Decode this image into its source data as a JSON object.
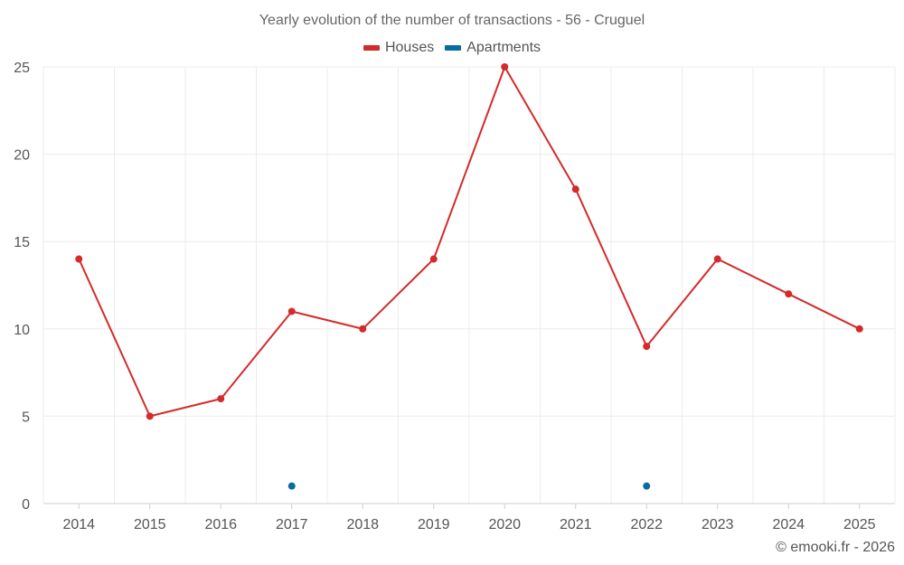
{
  "chart_data": {
    "type": "line",
    "title": "Yearly evolution of the number of transactions - 56 - Cruguel",
    "categories": [
      "2014",
      "2015",
      "2016",
      "2017",
      "2018",
      "2019",
      "2020",
      "2021",
      "2022",
      "2023",
      "2024",
      "2025"
    ],
    "ylim": [
      0,
      25
    ],
    "yticks": [
      0,
      5,
      10,
      15,
      20,
      25
    ],
    "grid": true,
    "legend_position": "top-center",
    "series": [
      {
        "name": "Houses",
        "color": "#d42a2a",
        "connected": true,
        "values": [
          14,
          5,
          6,
          11,
          10,
          14,
          25,
          18,
          9,
          14,
          12,
          10
        ]
      },
      {
        "name": "Apartments",
        "color": "#0a6b9e",
        "connected": false,
        "values": [
          null,
          null,
          null,
          1,
          null,
          null,
          null,
          null,
          1,
          null,
          null,
          null
        ]
      }
    ]
  },
  "footer": {
    "credit": "© emooki.fr - 2026"
  }
}
